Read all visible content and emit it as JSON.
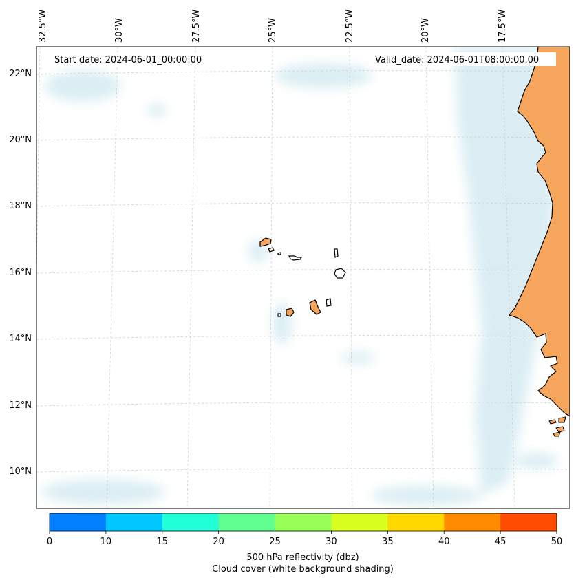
{
  "map": {
    "start_date_label": "Start date: 2024-06-01_00:00:00",
    "valid_date_label": "Valid_date: 2024-06-01T08:00:00.00",
    "lon_labels": [
      "32.5°W",
      "30°W",
      "27.5°W",
      "25°W",
      "22.5°W",
      "20°W",
      "17.5°W"
    ],
    "lat_labels": [
      "22°N",
      "20°N",
      "18°N",
      "16°N",
      "14°N",
      "12°N",
      "10°N"
    ],
    "land_color": "#f5a55c",
    "cloud_color": "#cfe8ef",
    "gridline_color": "#d0d0d0",
    "features": [
      "Cape Verde islands",
      "West African coastline"
    ]
  },
  "colorbar": {
    "ticks": [
      "0",
      "10",
      "15",
      "20",
      "25",
      "30",
      "35",
      "40",
      "45",
      "50"
    ],
    "colors": [
      "#0080ff",
      "#00c8ff",
      "#20ffd8",
      "#60ff90",
      "#98ff58",
      "#d8ff20",
      "#ffd800",
      "#ff8c00",
      "#ff4c00"
    ],
    "label_line1": "500 hPa reflectivity (dbz)",
    "label_line2": "Cloud cover (white background shading)"
  }
}
